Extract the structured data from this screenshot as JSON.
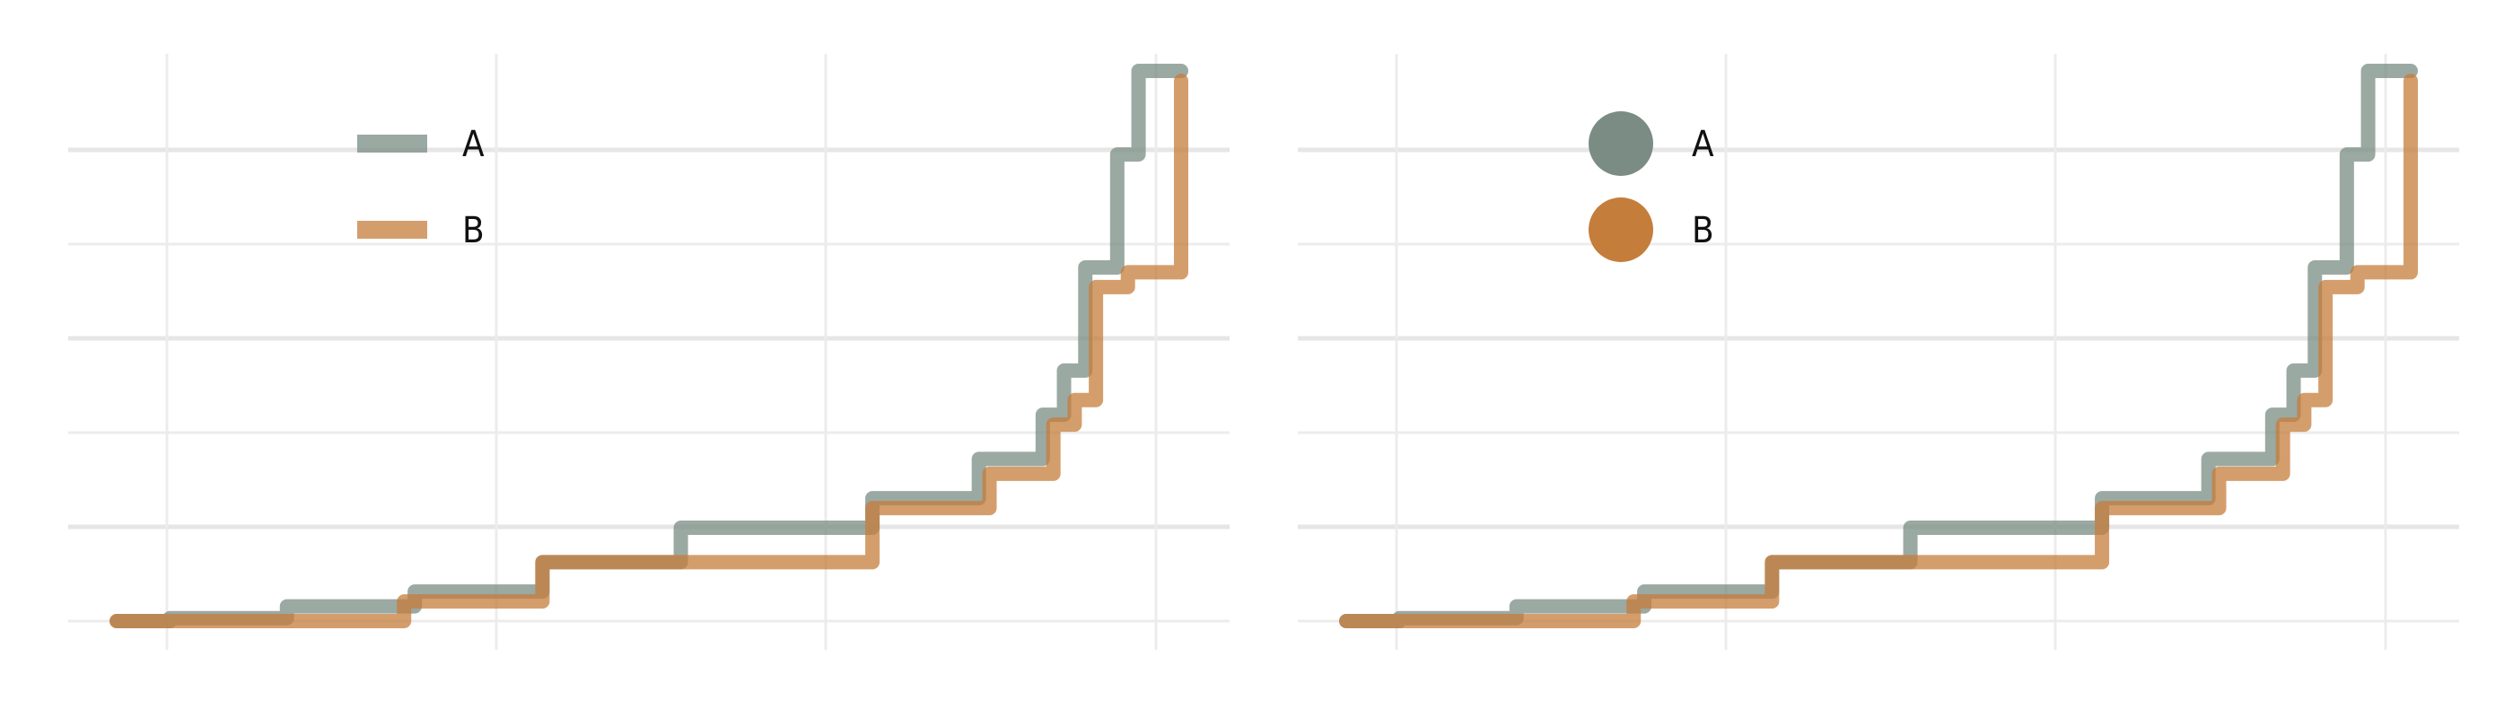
{
  "chart_data": [
    {
      "type": "line",
      "step": "post",
      "legend": {
        "placement": "top-left",
        "style": "line",
        "entries": [
          "A",
          "B"
        ]
      },
      "grid": true,
      "xlim": [
        0,
        100
      ],
      "ylim": [
        0,
        55
      ],
      "series": [
        {
          "name": "A",
          "color": "#7a8c84",
          "x": [
            0,
            5,
            16,
            28,
            40,
            53,
            71,
            81,
            87,
            89,
            91,
            94,
            96,
            100
          ],
          "y": [
            0,
            0.3,
            1.5,
            3,
            6,
            9.5,
            12.5,
            16.5,
            21,
            25.5,
            36,
            47.5,
            56,
            56
          ]
        },
        {
          "name": "B",
          "color": "#c57d3b",
          "x": [
            0,
            27,
            40,
            71,
            82,
            88,
            90,
            92,
            95,
            100
          ],
          "y": [
            0,
            2,
            6,
            11.5,
            15,
            20,
            22.5,
            34,
            35.5,
            55
          ]
        }
      ]
    },
    {
      "type": "line",
      "step": "post",
      "legend": {
        "placement": "top-left",
        "style": "point",
        "entries": [
          "A",
          "B"
        ]
      },
      "grid": true,
      "xlim": [
        0,
        100
      ],
      "ylim": [
        0,
        55
      ],
      "series": [
        {
          "name": "A",
          "color": "#7a8c84",
          "x": [
            0,
            5,
            16,
            28,
            40,
            53,
            71,
            81,
            87,
            89,
            91,
            94,
            96,
            100
          ],
          "y": [
            0,
            0.3,
            1.5,
            3,
            6,
            9.5,
            12.5,
            16.5,
            21,
            25.5,
            36,
            47.5,
            56,
            56
          ]
        },
        {
          "name": "B",
          "color": "#c57d3b",
          "x": [
            0,
            27,
            40,
            71,
            82,
            88,
            90,
            92,
            95,
            100
          ],
          "y": [
            0,
            2,
            6,
            11.5,
            15,
            20,
            22.5,
            34,
            35.5,
            55
          ]
        }
      ]
    }
  ]
}
